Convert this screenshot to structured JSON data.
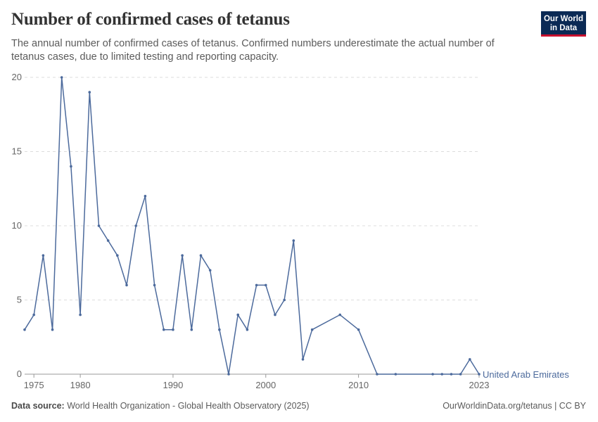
{
  "header": {
    "title": "Number of confirmed cases of tetanus",
    "subtitle": "The annual number of confirmed cases of tetanus. Confirmed numbers underestimate the actual number of tetanus cases, due to limited testing and reporting capacity.",
    "logo_line1": "Our World",
    "logo_line2": "in Data"
  },
  "footer": {
    "source_label": "Data source:",
    "source_text": "World Health Organization - Global Health Observatory (2025)",
    "credit": "OurWorldinData.org/tetanus | CC BY"
  },
  "colors": {
    "series": "#4c6a9c",
    "grid": "#dddddd",
    "axis_text": "#666666"
  },
  "chart_data": {
    "type": "line",
    "title": "Number of confirmed cases of tetanus",
    "xlim": [
      1974,
      2023
    ],
    "ylim": [
      0,
      20
    ],
    "yticks": [
      0,
      5,
      10,
      15,
      20
    ],
    "xticks": [
      1975,
      1980,
      1990,
      2000,
      2010,
      2023
    ],
    "grid": "horizontal",
    "series": [
      {
        "name": "United Arab Emirates",
        "x": [
          1974,
          1975,
          1976,
          1977,
          1978,
          1979,
          1980,
          1981,
          1982,
          1983,
          1984,
          1985,
          1986,
          1987,
          1988,
          1989,
          1990,
          1991,
          1992,
          1993,
          1994,
          1995,
          1996,
          1997,
          1998,
          1999,
          2000,
          2001,
          2002,
          2003,
          2004,
          2005,
          2008,
          2010,
          2012,
          2014,
          2018,
          2019,
          2020,
          2021,
          2022,
          2023
        ],
        "y": [
          3,
          4,
          8,
          3,
          20,
          14,
          4,
          19,
          10,
          9,
          8,
          6,
          10,
          12,
          6,
          3,
          3,
          8,
          3,
          8,
          7,
          3,
          0,
          4,
          3,
          6,
          6,
          4,
          5,
          9,
          1,
          3,
          4,
          3,
          0,
          0,
          0,
          0,
          0,
          0,
          1,
          0
        ]
      }
    ]
  }
}
